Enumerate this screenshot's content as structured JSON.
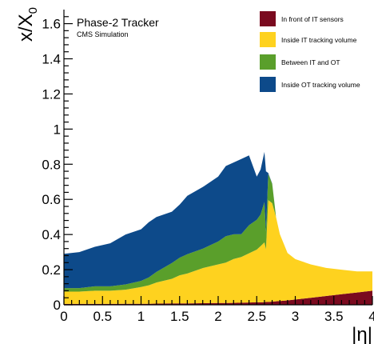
{
  "chart_data": {
    "type": "area",
    "title": "Phase-2 Tracker",
    "subtitle": "CMS Simulation",
    "xlabel": "|η|",
    "ylabel": "x/X0",
    "ylabel_main": "x/X",
    "ylabel_sub": "0",
    "xlim": [
      0,
      4
    ],
    "ylim": [
      0,
      1.68
    ],
    "x_ticks": [
      0,
      0.5,
      1,
      1.5,
      2,
      2.5,
      3,
      3.5,
      4
    ],
    "x_tick_labels": [
      "0",
      "0.5",
      "1",
      "1.5",
      "2",
      "2.5",
      "3",
      "3.5",
      "4"
    ],
    "y_ticks": [
      0,
      0.2,
      0.4,
      0.6,
      0.8,
      1,
      1.2,
      1.4,
      1.6
    ],
    "y_tick_labels": [
      "0",
      "0.2",
      "0.4",
      "0.6",
      "0.8",
      "1",
      "1.2",
      "1.4",
      "1.6"
    ],
    "legend_position": "top-right",
    "stacked": true,
    "x": [
      0,
      0.2,
      0.4,
      0.6,
      0.8,
      1.0,
      1.1,
      1.2,
      1.4,
      1.5,
      1.6,
      1.8,
      2.0,
      2.1,
      2.2,
      2.3,
      2.4,
      2.5,
      2.55,
      2.6,
      2.62,
      2.65,
      2.7,
      2.75,
      2.8,
      2.9,
      3.0,
      3.2,
      3.4,
      3.6,
      3.8,
      4.0
    ],
    "series": [
      {
        "name": "In front of IT sensors",
        "color": "#7a0a1f",
        "values": [
          0.005,
          0.005,
          0.005,
          0.005,
          0.006,
          0.006,
          0.006,
          0.007,
          0.008,
          0.008,
          0.008,
          0.009,
          0.01,
          0.01,
          0.011,
          0.012,
          0.013,
          0.014,
          0.014,
          0.015,
          0.016,
          0.016,
          0.018,
          0.02,
          0.022,
          0.025,
          0.03,
          0.04,
          0.05,
          0.06,
          0.07,
          0.08
        ]
      },
      {
        "name": "Inside IT tracking volume",
        "color": "#fed21f",
        "values": [
          0.07,
          0.07,
          0.075,
          0.075,
          0.08,
          0.095,
          0.105,
          0.12,
          0.14,
          0.16,
          0.17,
          0.2,
          0.22,
          0.23,
          0.25,
          0.26,
          0.28,
          0.3,
          0.32,
          0.34,
          0.3,
          0.58,
          0.56,
          0.48,
          0.38,
          0.27,
          0.23,
          0.19,
          0.16,
          0.14,
          0.12,
          0.11
        ]
      },
      {
        "name": "Between IT and OT",
        "color": "#5a9f2b",
        "values": [
          0.02,
          0.02,
          0.025,
          0.025,
          0.03,
          0.035,
          0.045,
          0.06,
          0.09,
          0.1,
          0.11,
          0.11,
          0.13,
          0.15,
          0.14,
          0.13,
          0.16,
          0.17,
          0.18,
          0.23,
          0.1,
          0.15,
          0.11,
          0.0,
          0.0,
          0.0,
          0.0,
          0.0,
          0.0,
          0.0,
          0.0,
          0.0
        ]
      },
      {
        "name": "Inside OT tracking volume",
        "color": "#0d4a8a",
        "values": [
          0.195,
          0.205,
          0.225,
          0.245,
          0.284,
          0.294,
          0.314,
          0.313,
          0.292,
          0.302,
          0.332,
          0.351,
          0.37,
          0.4,
          0.409,
          0.428,
          0.397,
          0.246,
          0.256,
          0.285,
          0.344,
          0.004,
          0.002,
          0.0,
          0.0,
          0.0,
          0.0,
          0.0,
          0.0,
          0.0,
          0.0,
          0.0
        ]
      }
    ]
  }
}
